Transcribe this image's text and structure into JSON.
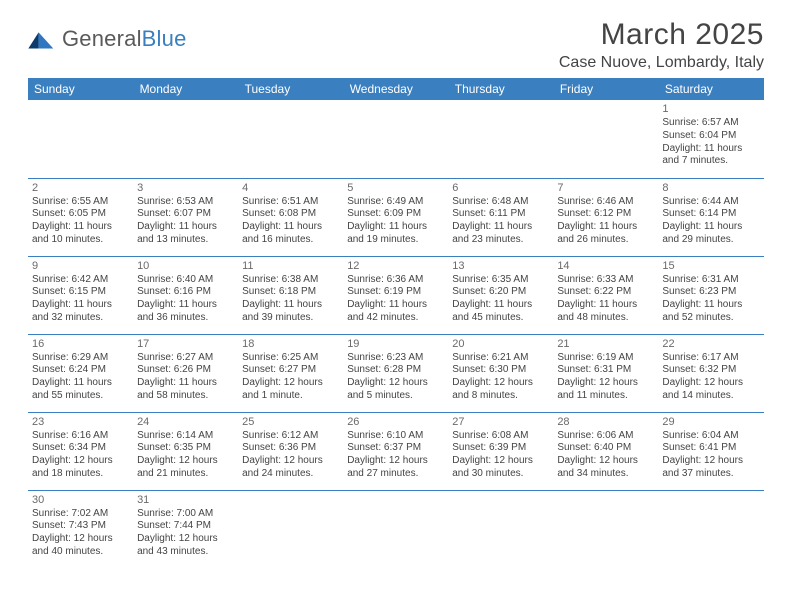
{
  "logo": {
    "word1": "General",
    "word2": "Blue",
    "mark_colors": [
      "#0b3a6b",
      "#2f77c0"
    ]
  },
  "title": "March 2025",
  "location": "Case Nuove, Lombardy, Italy",
  "theme": {
    "header_bg": "#3a7fbf",
    "header_text": "#ffffff",
    "cell_border": "#3a7fbf",
    "text_color": "#444444",
    "daynum_color": "#6a6a6a",
    "background": "#ffffff",
    "title_fontsize": 30,
    "location_fontsize": 16,
    "dayhdr_fontsize": 12,
    "cell_fontsize": 10
  },
  "day_headers": [
    "Sunday",
    "Monday",
    "Tuesday",
    "Wednesday",
    "Thursday",
    "Friday",
    "Saturday"
  ],
  "weeks": [
    [
      null,
      null,
      null,
      null,
      null,
      null,
      {
        "n": "1",
        "sunrise": "Sunrise: 6:57 AM",
        "sunset": "Sunset: 6:04 PM",
        "daylight": "Daylight: 11 hours and 7 minutes."
      }
    ],
    [
      {
        "n": "2",
        "sunrise": "Sunrise: 6:55 AM",
        "sunset": "Sunset: 6:05 PM",
        "daylight": "Daylight: 11 hours and 10 minutes."
      },
      {
        "n": "3",
        "sunrise": "Sunrise: 6:53 AM",
        "sunset": "Sunset: 6:07 PM",
        "daylight": "Daylight: 11 hours and 13 minutes."
      },
      {
        "n": "4",
        "sunrise": "Sunrise: 6:51 AM",
        "sunset": "Sunset: 6:08 PM",
        "daylight": "Daylight: 11 hours and 16 minutes."
      },
      {
        "n": "5",
        "sunrise": "Sunrise: 6:49 AM",
        "sunset": "Sunset: 6:09 PM",
        "daylight": "Daylight: 11 hours and 19 minutes."
      },
      {
        "n": "6",
        "sunrise": "Sunrise: 6:48 AM",
        "sunset": "Sunset: 6:11 PM",
        "daylight": "Daylight: 11 hours and 23 minutes."
      },
      {
        "n": "7",
        "sunrise": "Sunrise: 6:46 AM",
        "sunset": "Sunset: 6:12 PM",
        "daylight": "Daylight: 11 hours and 26 minutes."
      },
      {
        "n": "8",
        "sunrise": "Sunrise: 6:44 AM",
        "sunset": "Sunset: 6:14 PM",
        "daylight": "Daylight: 11 hours and 29 minutes."
      }
    ],
    [
      {
        "n": "9",
        "sunrise": "Sunrise: 6:42 AM",
        "sunset": "Sunset: 6:15 PM",
        "daylight": "Daylight: 11 hours and 32 minutes."
      },
      {
        "n": "10",
        "sunrise": "Sunrise: 6:40 AM",
        "sunset": "Sunset: 6:16 PM",
        "daylight": "Daylight: 11 hours and 36 minutes."
      },
      {
        "n": "11",
        "sunrise": "Sunrise: 6:38 AM",
        "sunset": "Sunset: 6:18 PM",
        "daylight": "Daylight: 11 hours and 39 minutes."
      },
      {
        "n": "12",
        "sunrise": "Sunrise: 6:36 AM",
        "sunset": "Sunset: 6:19 PM",
        "daylight": "Daylight: 11 hours and 42 minutes."
      },
      {
        "n": "13",
        "sunrise": "Sunrise: 6:35 AM",
        "sunset": "Sunset: 6:20 PM",
        "daylight": "Daylight: 11 hours and 45 minutes."
      },
      {
        "n": "14",
        "sunrise": "Sunrise: 6:33 AM",
        "sunset": "Sunset: 6:22 PM",
        "daylight": "Daylight: 11 hours and 48 minutes."
      },
      {
        "n": "15",
        "sunrise": "Sunrise: 6:31 AM",
        "sunset": "Sunset: 6:23 PM",
        "daylight": "Daylight: 11 hours and 52 minutes."
      }
    ],
    [
      {
        "n": "16",
        "sunrise": "Sunrise: 6:29 AM",
        "sunset": "Sunset: 6:24 PM",
        "daylight": "Daylight: 11 hours and 55 minutes."
      },
      {
        "n": "17",
        "sunrise": "Sunrise: 6:27 AM",
        "sunset": "Sunset: 6:26 PM",
        "daylight": "Daylight: 11 hours and 58 minutes."
      },
      {
        "n": "18",
        "sunrise": "Sunrise: 6:25 AM",
        "sunset": "Sunset: 6:27 PM",
        "daylight": "Daylight: 12 hours and 1 minute."
      },
      {
        "n": "19",
        "sunrise": "Sunrise: 6:23 AM",
        "sunset": "Sunset: 6:28 PM",
        "daylight": "Daylight: 12 hours and 5 minutes."
      },
      {
        "n": "20",
        "sunrise": "Sunrise: 6:21 AM",
        "sunset": "Sunset: 6:30 PM",
        "daylight": "Daylight: 12 hours and 8 minutes."
      },
      {
        "n": "21",
        "sunrise": "Sunrise: 6:19 AM",
        "sunset": "Sunset: 6:31 PM",
        "daylight": "Daylight: 12 hours and 11 minutes."
      },
      {
        "n": "22",
        "sunrise": "Sunrise: 6:17 AM",
        "sunset": "Sunset: 6:32 PM",
        "daylight": "Daylight: 12 hours and 14 minutes."
      }
    ],
    [
      {
        "n": "23",
        "sunrise": "Sunrise: 6:16 AM",
        "sunset": "Sunset: 6:34 PM",
        "daylight": "Daylight: 12 hours and 18 minutes."
      },
      {
        "n": "24",
        "sunrise": "Sunrise: 6:14 AM",
        "sunset": "Sunset: 6:35 PM",
        "daylight": "Daylight: 12 hours and 21 minutes."
      },
      {
        "n": "25",
        "sunrise": "Sunrise: 6:12 AM",
        "sunset": "Sunset: 6:36 PM",
        "daylight": "Daylight: 12 hours and 24 minutes."
      },
      {
        "n": "26",
        "sunrise": "Sunrise: 6:10 AM",
        "sunset": "Sunset: 6:37 PM",
        "daylight": "Daylight: 12 hours and 27 minutes."
      },
      {
        "n": "27",
        "sunrise": "Sunrise: 6:08 AM",
        "sunset": "Sunset: 6:39 PM",
        "daylight": "Daylight: 12 hours and 30 minutes."
      },
      {
        "n": "28",
        "sunrise": "Sunrise: 6:06 AM",
        "sunset": "Sunset: 6:40 PM",
        "daylight": "Daylight: 12 hours and 34 minutes."
      },
      {
        "n": "29",
        "sunrise": "Sunrise: 6:04 AM",
        "sunset": "Sunset: 6:41 PM",
        "daylight": "Daylight: 12 hours and 37 minutes."
      }
    ],
    [
      {
        "n": "30",
        "sunrise": "Sunrise: 7:02 AM",
        "sunset": "Sunset: 7:43 PM",
        "daylight": "Daylight: 12 hours and 40 minutes."
      },
      {
        "n": "31",
        "sunrise": "Sunrise: 7:00 AM",
        "sunset": "Sunset: 7:44 PM",
        "daylight": "Daylight: 12 hours and 43 minutes."
      },
      null,
      null,
      null,
      null,
      null
    ]
  ]
}
